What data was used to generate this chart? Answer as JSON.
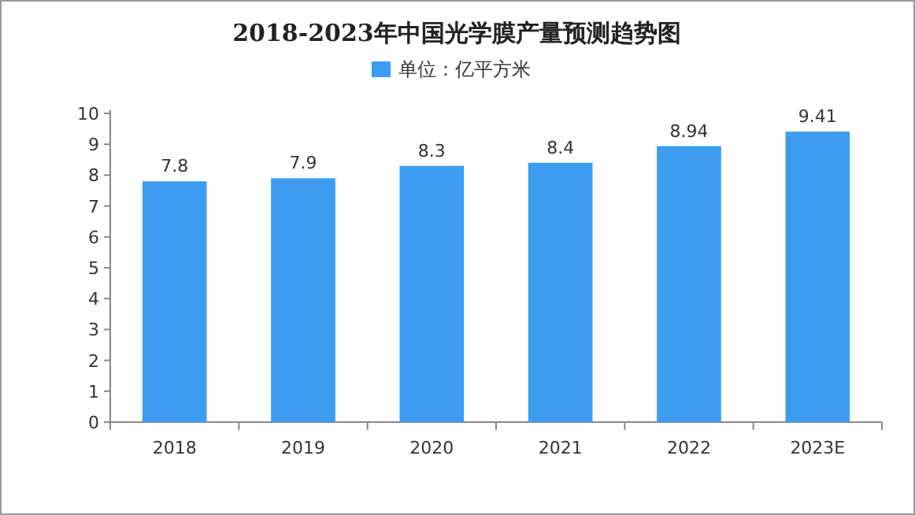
{
  "chart_data": {
    "type": "bar",
    "title": "2018-2023年中国光学膜产量预测趋势图",
    "categories": [
      "2018",
      "2019",
      "2020",
      "2021",
      "2022",
      "2023E"
    ],
    "series": [
      {
        "name": "单位：亿平方米",
        "color": "#3d9cf0",
        "values": [
          7.8,
          7.9,
          8.3,
          8.4,
          8.94,
          9.41
        ]
      }
    ],
    "ylim": [
      0,
      10
    ],
    "yticks": [
      0,
      1,
      2,
      3,
      4,
      5,
      6,
      7,
      8,
      9,
      10
    ],
    "data_labels": true,
    "legend": "top",
    "grid": false
  }
}
